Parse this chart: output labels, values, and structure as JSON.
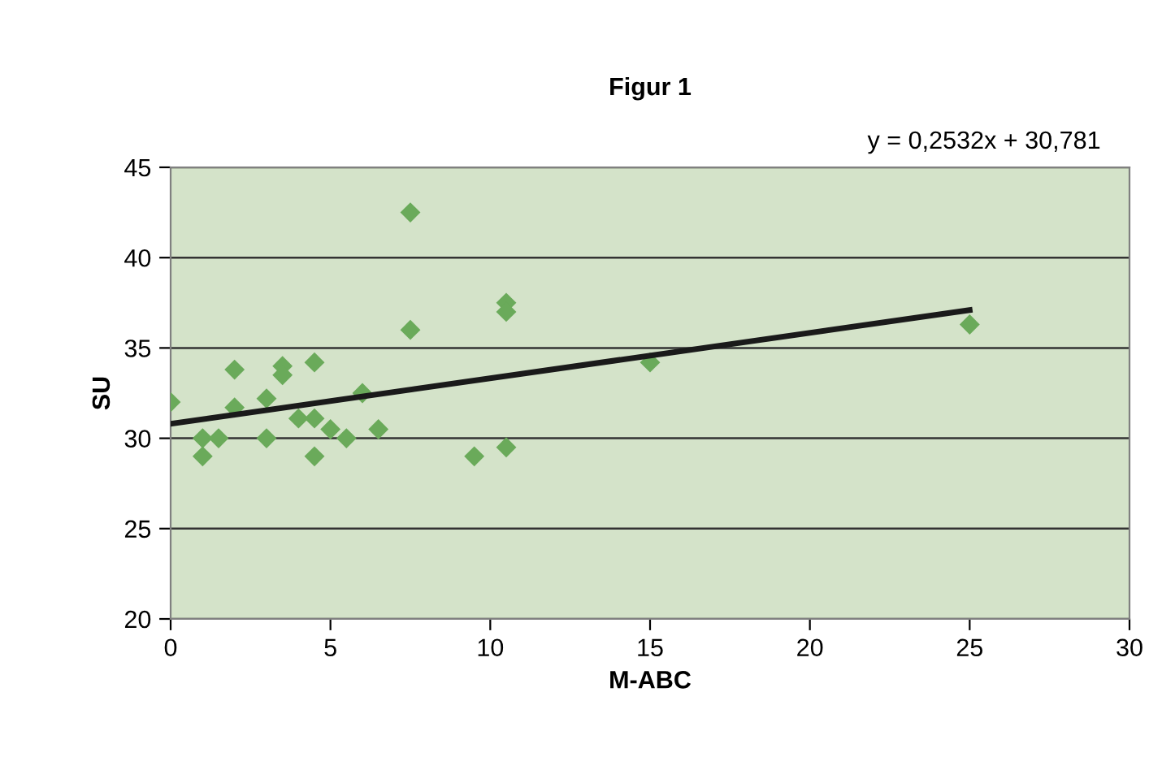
{
  "chart_data": {
    "type": "scatter",
    "title": "Figur 1",
    "xlabel": "M-ABC",
    "ylabel": "SU",
    "annotations": [
      "y = 0,2532x + 30,781"
    ],
    "series": [
      {
        "color": "#6aaa5a",
        "marker": "diamond",
        "x": [
          0,
          1,
          1,
          1.5,
          2,
          2,
          3,
          3,
          3.5,
          3.5,
          4,
          4.5,
          4.5,
          4.5,
          5,
          5.5,
          6,
          6.5,
          7.5,
          7.5,
          9.5,
          10.5,
          10.5,
          10.5,
          15,
          25
        ],
        "values": [
          32,
          30,
          29,
          30,
          31.7,
          33.8,
          32.2,
          30,
          34,
          33.5,
          31.1,
          34.2,
          31.1,
          29,
          30.5,
          30,
          32.5,
          30.5,
          42.5,
          36,
          29,
          37.5,
          37,
          29.5,
          34.2,
          36.3
        ]
      },
      {
        "type": "line",
        "color": "#1a1a1a",
        "x": [
          0,
          25
        ],
        "values": [
          30.8,
          37.1
        ]
      }
    ],
    "xlim": [
      0,
      30
    ],
    "xticks": [
      0,
      5,
      10,
      15,
      20,
      25,
      30
    ],
    "ylim": [
      20,
      45
    ],
    "yticks": [
      20,
      25,
      30,
      35,
      40,
      45
    ],
    "grid": "y",
    "legend": false
  }
}
